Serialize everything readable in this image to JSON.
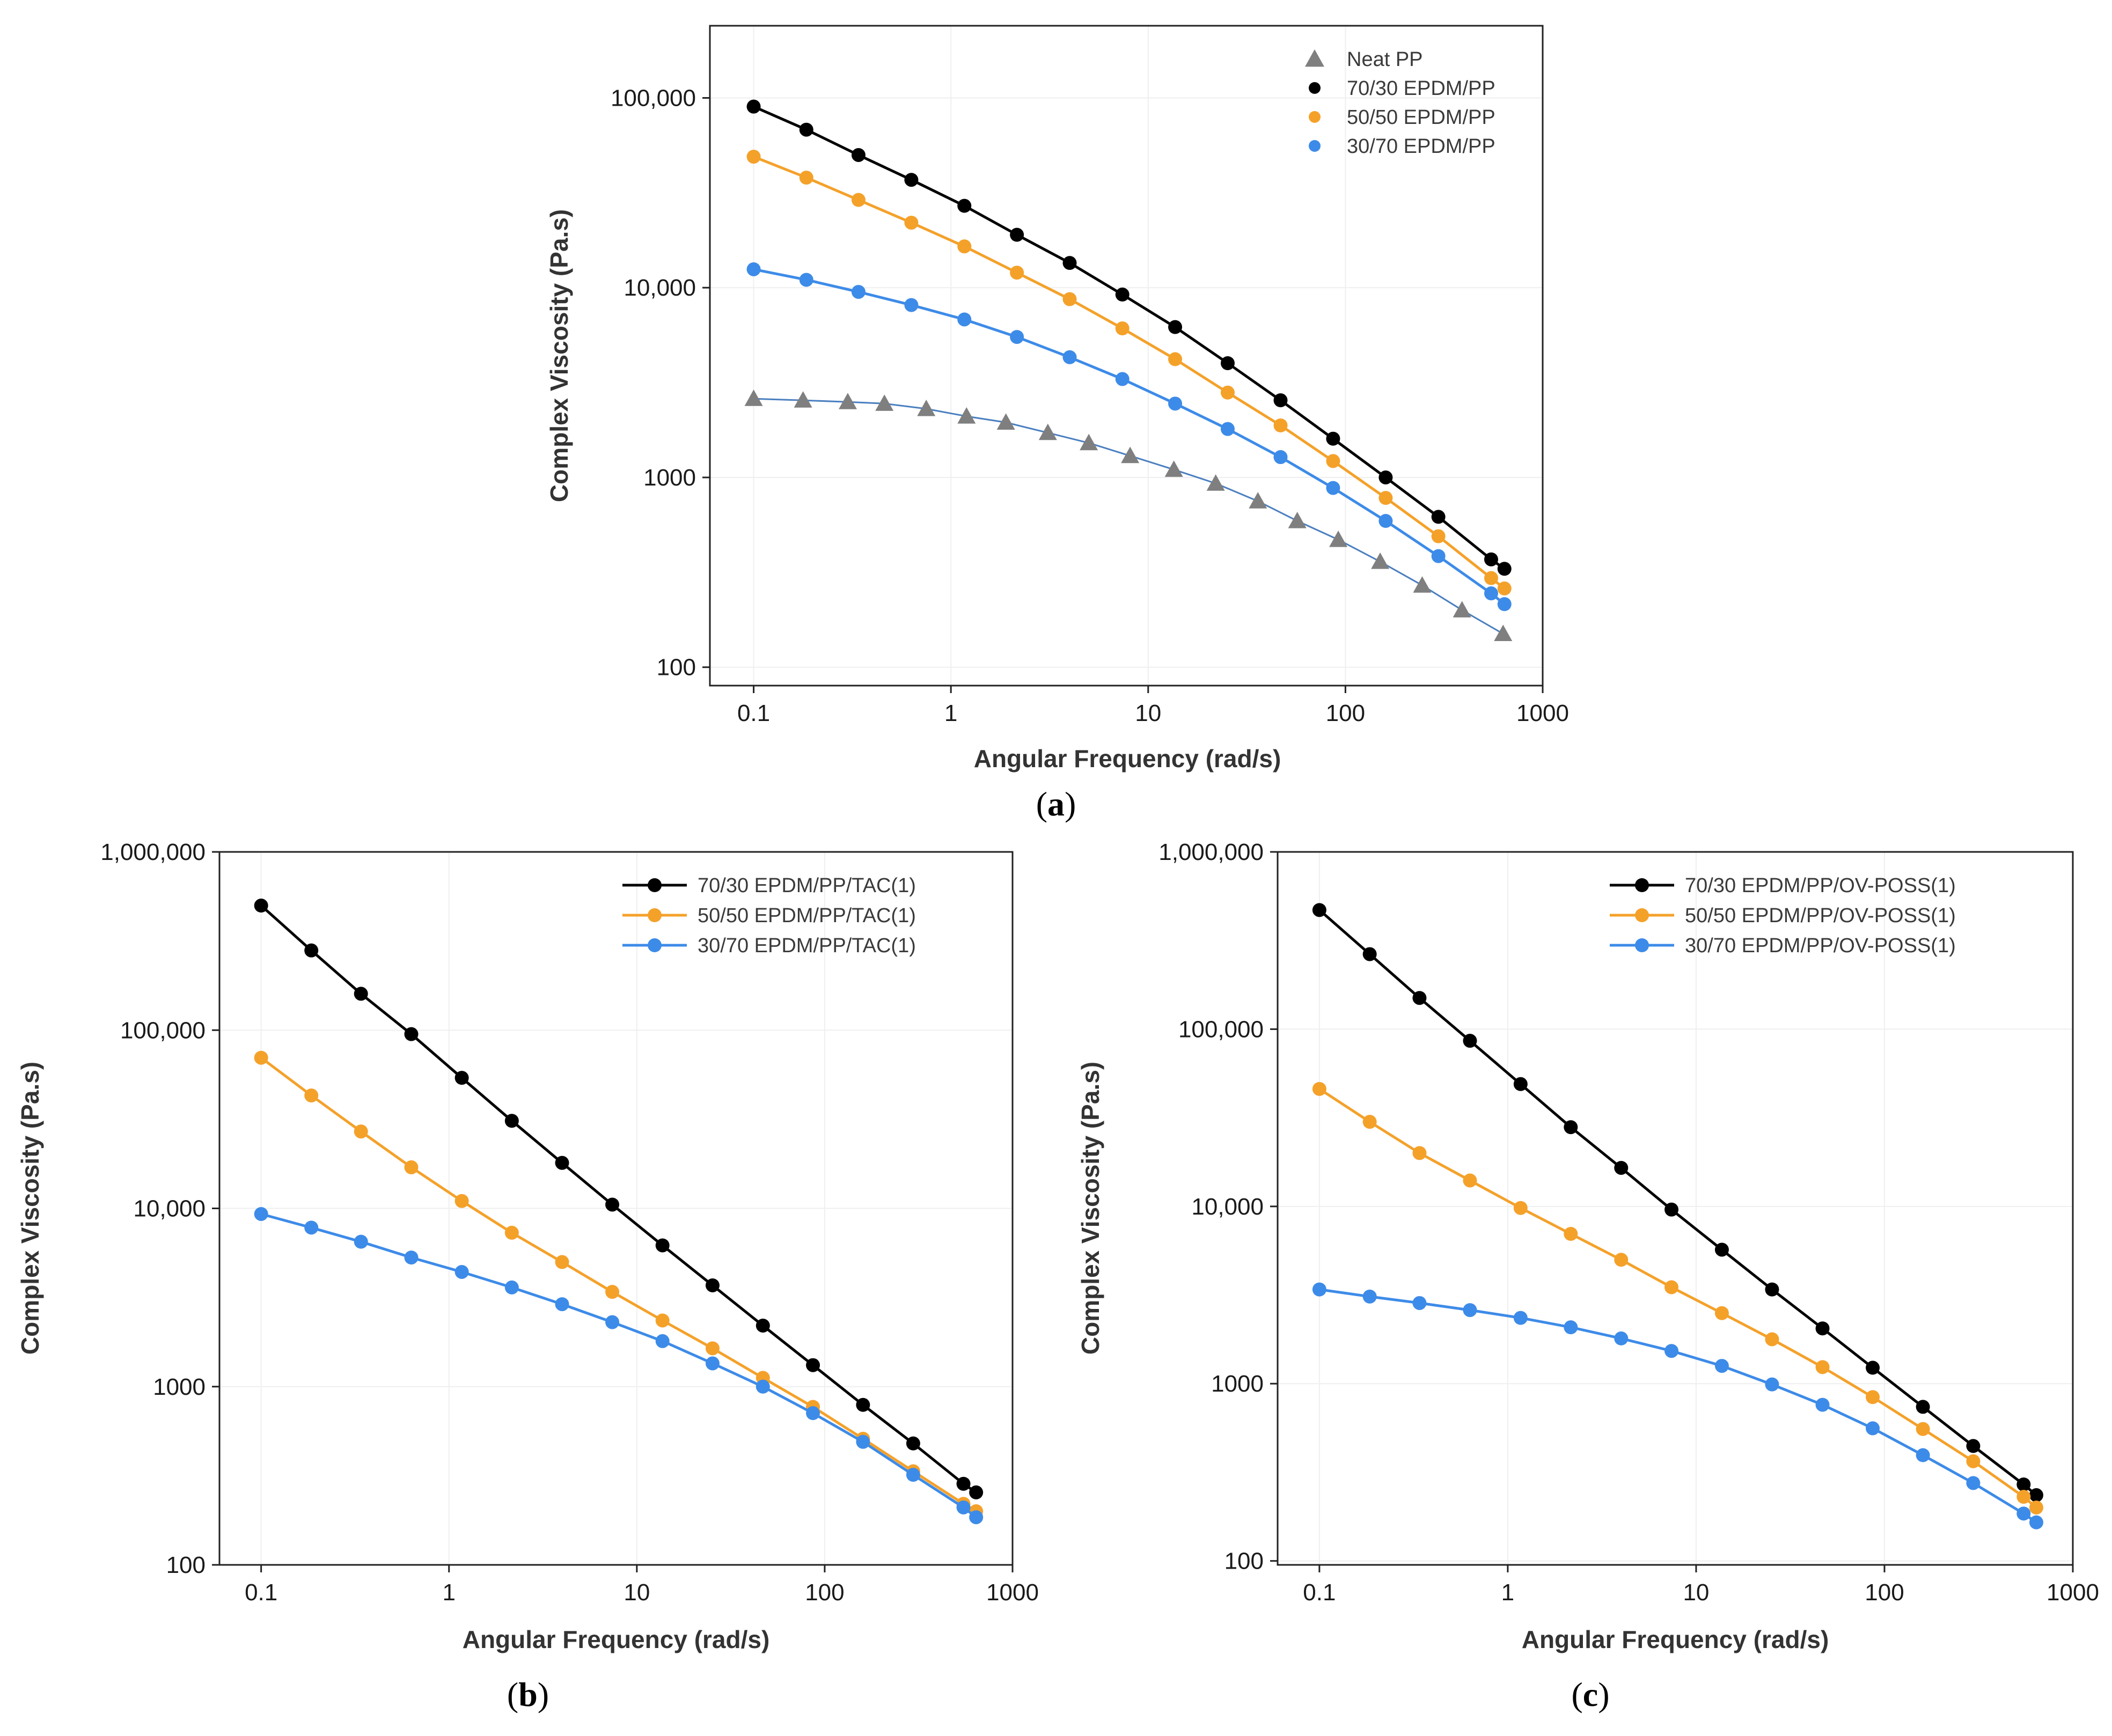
{
  "chart_data": [
    {
      "id": "a",
      "type": "line",
      "panel_label": "a",
      "xlabel": "Angular Frequency (rad/s)",
      "ylabel": "Complex Viscosity (Pa.s)",
      "xscale": "log",
      "yscale": "log",
      "xlim": [
        0.06,
        1000
      ],
      "ylim": [
        80,
        240000
      ],
      "xticks": [
        0.1,
        1,
        10,
        100,
        1000
      ],
      "xtick_labels": [
        "0.1",
        "1",
        "10",
        "100",
        "1000"
      ],
      "yticks": [
        100,
        1000,
        10000,
        100000
      ],
      "ytick_labels": [
        "100",
        "1000",
        "10,000",
        "100,000"
      ],
      "grid": true,
      "legend_position": "top-right",
      "legend_line_samples": false,
      "series": [
        {
          "name": "Neat PP",
          "marker": "triangle",
          "color": "#7f7f7f",
          "line_color": "#4a7fc0",
          "x": [
            0.1,
            0.178,
            0.3,
            0.46,
            0.75,
            1.2,
            1.9,
            3.1,
            5.0,
            8.1,
            13.5,
            22,
            36,
            57,
            92,
            150,
            245,
            390,
            630
          ],
          "y": [
            2600,
            2550,
            2500,
            2450,
            2300,
            2100,
            1950,
            1720,
            1520,
            1300,
            1100,
            930,
            750,
            590,
            470,
            360,
            270,
            200,
            150
          ]
        },
        {
          "name": "70/30 EPDM/PP",
          "marker": "circle",
          "color": "#000000",
          "line_color": "#000000",
          "x": [
            0.1,
            0.185,
            0.34,
            0.63,
            1.17,
            2.16,
            4.0,
            7.4,
            13.7,
            25.3,
            46.9,
            86.6,
            160,
            296,
            548,
            640
          ],
          "y": [
            90000,
            68000,
            50000,
            37000,
            27000,
            19000,
            13500,
            9200,
            6200,
            4000,
            2550,
            1600,
            1000,
            620,
            370,
            330
          ]
        },
        {
          "name": "50/50 EPDM/PP",
          "marker": "circle",
          "color": "#f4a12a",
          "line_color": "#f4a12a",
          "x": [
            0.1,
            0.185,
            0.34,
            0.63,
            1.17,
            2.16,
            4.0,
            7.4,
            13.7,
            25.3,
            46.9,
            86.6,
            160,
            296,
            548,
            640
          ],
          "y": [
            49000,
            38000,
            29000,
            22000,
            16500,
            12000,
            8700,
            6100,
            4200,
            2800,
            1880,
            1220,
            780,
            490,
            295,
            260
          ]
        },
        {
          "name": "30/70 EPDM/PP",
          "marker": "circle",
          "color": "#3d8be8",
          "line_color": "#3d8be8",
          "x": [
            0.1,
            0.185,
            0.34,
            0.63,
            1.17,
            2.16,
            4.0,
            7.4,
            13.7,
            25.3,
            46.9,
            86.6,
            160,
            296,
            548,
            640
          ],
          "y": [
            12500,
            11000,
            9500,
            8100,
            6800,
            5500,
            4300,
            3300,
            2450,
            1800,
            1280,
            880,
            590,
            385,
            245,
            215
          ]
        }
      ]
    },
    {
      "id": "b",
      "type": "line",
      "panel_label": "b",
      "xlabel": "Angular Frequency (rad/s)",
      "ylabel": "Complex Viscosity (Pa.s)",
      "xscale": "log",
      "yscale": "log",
      "xlim": [
        0.06,
        1000
      ],
      "ylim": [
        100,
        1000000
      ],
      "xticks": [
        0.1,
        1,
        10,
        100,
        1000
      ],
      "xtick_labels": [
        "0.1",
        "1",
        "10",
        "100",
        "1000"
      ],
      "yticks": [
        100,
        1000,
        10000,
        100000,
        1000000
      ],
      "ytick_labels": [
        "100",
        "1000",
        "10,000",
        "100,000",
        "1,000,000"
      ],
      "grid": true,
      "legend_position": "top-right",
      "legend_line_samples": true,
      "series": [
        {
          "name": "70/30 EPDM/PP/TAC(1)",
          "marker": "circle",
          "color": "#000000",
          "line_color": "#000000",
          "x": [
            0.1,
            0.185,
            0.34,
            0.63,
            1.17,
            2.16,
            4.0,
            7.4,
            13.7,
            25.3,
            46.9,
            86.6,
            160,
            296,
            548,
            640
          ],
          "y": [
            500000,
            280000,
            160000,
            95000,
            54000,
            31000,
            18000,
            10500,
            6200,
            3700,
            2200,
            1320,
            790,
            480,
            285,
            255
          ]
        },
        {
          "name": "50/50 EPDM/PP/TAC(1)",
          "marker": "circle",
          "color": "#f4a12a",
          "line_color": "#f4a12a",
          "x": [
            0.1,
            0.185,
            0.34,
            0.63,
            1.17,
            2.16,
            4.0,
            7.4,
            13.7,
            25.3,
            46.9,
            86.6,
            160,
            296,
            548,
            640
          ],
          "y": [
            70000,
            43000,
            27000,
            17000,
            11000,
            7300,
            5000,
            3400,
            2350,
            1640,
            1120,
            770,
            510,
            335,
            220,
            200
          ]
        },
        {
          "name": "30/70 EPDM/PP/TAC(1)",
          "marker": "circle",
          "color": "#3d8be8",
          "line_color": "#3d8be8",
          "x": [
            0.1,
            0.185,
            0.34,
            0.63,
            1.17,
            2.16,
            4.0,
            7.4,
            13.7,
            25.3,
            46.9,
            86.6,
            160,
            296,
            548,
            640
          ],
          "y": [
            9300,
            7800,
            6500,
            5300,
            4400,
            3600,
            2900,
            2300,
            1800,
            1350,
            1000,
            710,
            490,
            320,
            210,
            185
          ]
        }
      ]
    },
    {
      "id": "c",
      "type": "line",
      "panel_label": "c",
      "xlabel": "Angular Frequency (rad/s)",
      "ylabel": "Complex Viscosity (Pa.s)",
      "xscale": "log",
      "yscale": "log",
      "xlim": [
        0.06,
        1000
      ],
      "ylim": [
        95,
        1000000
      ],
      "xticks": [
        0.1,
        1,
        10,
        100,
        1000
      ],
      "xtick_labels": [
        "0.1",
        "1",
        "10",
        "100",
        "1000"
      ],
      "yticks": [
        100,
        1000,
        10000,
        100000,
        1000000
      ],
      "ytick_labels": [
        "100",
        "1000",
        "10,000",
        "100,000",
        "1,000,000"
      ],
      "grid": true,
      "legend_position": "top-right",
      "legend_line_samples": true,
      "series": [
        {
          "name": "70/30 EPDM/PP/OV-POSS(1)",
          "marker": "circle",
          "color": "#000000",
          "line_color": "#000000",
          "x": [
            0.1,
            0.185,
            0.34,
            0.63,
            1.17,
            2.16,
            4.0,
            7.4,
            13.7,
            25.3,
            46.9,
            86.6,
            160,
            296,
            548,
            640
          ],
          "y": [
            470000,
            265000,
            150000,
            86000,
            49000,
            28000,
            16500,
            9600,
            5700,
            3400,
            2050,
            1230,
            740,
            445,
            270,
            235
          ]
        },
        {
          "name": "50/50 EPDM/PP/OV-POSS(1)",
          "marker": "circle",
          "color": "#f4a12a",
          "line_color": "#f4a12a",
          "x": [
            0.1,
            0.185,
            0.34,
            0.63,
            1.17,
            2.16,
            4.0,
            7.4,
            13.7,
            25.3,
            46.9,
            86.6,
            160,
            296,
            548,
            640
          ],
          "y": [
            46000,
            30000,
            20000,
            14000,
            9800,
            7000,
            5000,
            3500,
            2500,
            1780,
            1240,
            840,
            555,
            365,
            230,
            200
          ]
        },
        {
          "name": "30/70 EPDM/PP/OV-POSS(1)",
          "marker": "circle",
          "color": "#3d8be8",
          "line_color": "#3d8be8",
          "x": [
            0.1,
            0.185,
            0.34,
            0.63,
            1.17,
            2.16,
            4.0,
            7.4,
            13.7,
            25.3,
            46.9,
            86.6,
            160,
            296,
            548,
            640
          ],
          "y": [
            3400,
            3100,
            2850,
            2600,
            2350,
            2080,
            1800,
            1530,
            1260,
            990,
            760,
            560,
            395,
            275,
            185,
            165
          ]
        }
      ]
    }
  ]
}
